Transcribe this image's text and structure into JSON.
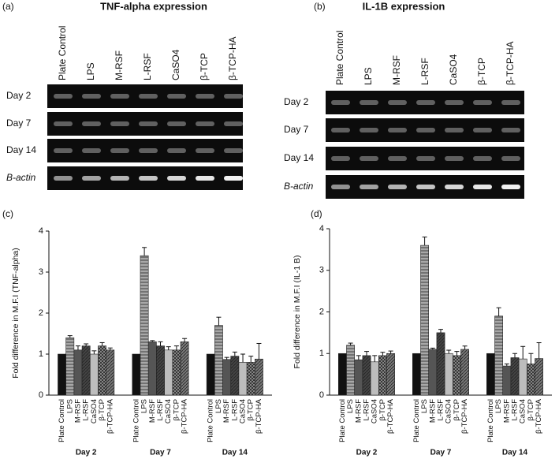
{
  "gels": [
    {
      "panel_label": "(a)",
      "title": "TNF-alpha expression",
      "lanes": [
        "Plate Control",
        "LPS",
        "M-RSF",
        "L-RSF",
        "CaSO4",
        "β-TCP",
        "β-TCP-HA"
      ],
      "rows": [
        "Day 2",
        "Day 7",
        "Day 14",
        "B-actin"
      ]
    },
    {
      "panel_label": "(b)",
      "title": "IL-1B expression",
      "lanes": [
        "Plate Control",
        "LPS",
        "M-RSF",
        "L-RSF",
        "CaSO4",
        "β-TCP",
        "β-TCP-HA"
      ],
      "rows": [
        "Day 2",
        "Day 7",
        "Day 14",
        "B-actin"
      ]
    }
  ],
  "chart_data": [
    {
      "type": "bar",
      "panel_label": "(c)",
      "ylabel": "Fold difference in M.F.I (TNF-alpha)",
      "groups": [
        "Day 2",
        "Day 7",
        "Day 14"
      ],
      "ylim": [
        0,
        4
      ],
      "yticks": [
        0,
        1,
        2,
        3,
        4
      ],
      "series": [
        {
          "name": "Plate Control",
          "color": "#111111",
          "pattern": "solid",
          "values": [
            1.0,
            1.0,
            1.0
          ],
          "errors": [
            0,
            0,
            0
          ]
        },
        {
          "name": "LPS",
          "color": "#a8a8a8",
          "pattern": "horizontal",
          "values": [
            1.4,
            3.4,
            1.7
          ],
          "errors": [
            0.05,
            0.2,
            0.2
          ]
        },
        {
          "name": "M-RSF",
          "color": "#555555",
          "pattern": "solid",
          "values": [
            1.1,
            1.3,
            0.87
          ],
          "errors": [
            0.1,
            0.03,
            0.05
          ]
        },
        {
          "name": "L-RSF",
          "color": "#444444",
          "pattern": "diagonal",
          "values": [
            1.2,
            1.2,
            0.95
          ],
          "errors": [
            0.05,
            0.1,
            0.1
          ]
        },
        {
          "name": "CaSO4",
          "color": "#bdbdbd",
          "pattern": "solid",
          "values": [
            1.0,
            1.1,
            0.8
          ],
          "errors": [
            0.08,
            0.08,
            0.2
          ]
        },
        {
          "name": "β-TCP",
          "color": "#9a9a9a",
          "pattern": "crosshatch",
          "values": [
            1.2,
            1.1,
            0.8
          ],
          "errors": [
            0.08,
            0.1,
            0.15
          ]
        },
        {
          "name": "β-TCP-HA",
          "color": "#777777",
          "pattern": "diagonal",
          "values": [
            1.1,
            1.3,
            0.88
          ],
          "errors": [
            0.05,
            0.08,
            0.38
          ]
        }
      ]
    },
    {
      "type": "bar",
      "panel_label": "(d)",
      "ylabel": "Fold difference in M.F.I (IL-1 B)",
      "groups": [
        "Day 2",
        "Day 7",
        "Day 14"
      ],
      "ylim": [
        0,
        4
      ],
      "yticks": [
        0,
        1,
        2,
        3,
        4
      ],
      "series": [
        {
          "name": "Plate Control",
          "color": "#111111",
          "pattern": "solid",
          "values": [
            1.0,
            1.0,
            1.0
          ],
          "errors": [
            0,
            0,
            0
          ]
        },
        {
          "name": "LPS",
          "color": "#a8a8a8",
          "pattern": "horizontal",
          "values": [
            1.2,
            3.6,
            1.9
          ],
          "errors": [
            0.05,
            0.2,
            0.2
          ]
        },
        {
          "name": "M-RSF",
          "color": "#555555",
          "pattern": "solid",
          "values": [
            0.85,
            1.1,
            0.7
          ],
          "errors": [
            0.1,
            0.03,
            0.05
          ]
        },
        {
          "name": "L-RSF",
          "color": "#444444",
          "pattern": "diagonal",
          "values": [
            0.95,
            1.5,
            0.9
          ],
          "errors": [
            0.1,
            0.08,
            0.1
          ]
        },
        {
          "name": "CaSO4",
          "color": "#bdbdbd",
          "pattern": "solid",
          "values": [
            0.8,
            1.0,
            0.87
          ],
          "errors": [
            0.15,
            0.08,
            0.3
          ]
        },
        {
          "name": "β-TCP",
          "color": "#9a9a9a",
          "pattern": "crosshatch",
          "values": [
            0.95,
            0.95,
            0.75
          ],
          "errors": [
            0.08,
            0.1,
            0.25
          ]
        },
        {
          "name": "β-TCP-HA",
          "color": "#777777",
          "pattern": "diagonal",
          "values": [
            1.0,
            1.1,
            0.88
          ],
          "errors": [
            0.06,
            0.08,
            0.38
          ]
        }
      ]
    }
  ]
}
